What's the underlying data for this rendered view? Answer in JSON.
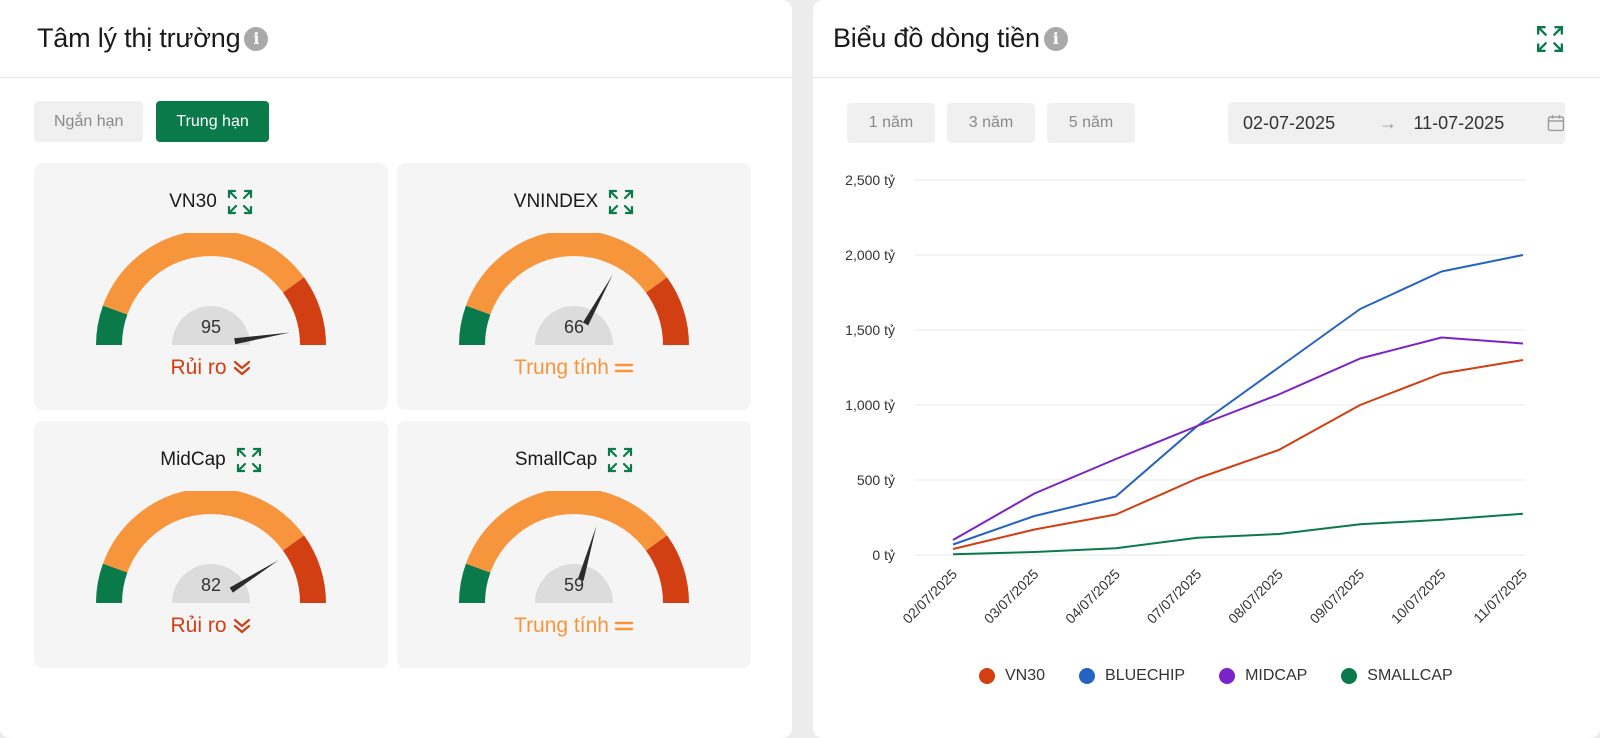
{
  "sentiment": {
    "title": "Tâm lý thị trường",
    "tabs": [
      {
        "label": "Ngắn hạn",
        "active": false
      },
      {
        "label": "Trung hạn",
        "active": true
      }
    ],
    "cards": [
      {
        "name": "VN30",
        "value": 95,
        "status": "Rủi ro",
        "status_type": "risk"
      },
      {
        "name": "VNINDEX",
        "value": 66,
        "status": "Trung tính",
        "status_type": "neutral"
      },
      {
        "name": "MidCap",
        "value": 82,
        "status": "Rủi ro",
        "status_type": "risk"
      },
      {
        "name": "SmallCap",
        "value": 59,
        "status": "Trung tính",
        "status_type": "neutral"
      }
    ]
  },
  "cashflow": {
    "title": "Biểu đồ dòng tiền",
    "ranges": [
      "1 năm",
      "3 năm",
      "5 năm"
    ],
    "date_from": "02-07-2025",
    "date_arrow": "→",
    "date_to": "11-07-2025"
  },
  "colors": {
    "green": "#0b7a4b",
    "orange": "#f7953c",
    "red": "#d13f12"
  },
  "chart_data": {
    "type": "line",
    "x": [
      "02/07/2025",
      "03/07/2025",
      "04/07/2025",
      "07/07/2025",
      "08/07/2025",
      "09/07/2025",
      "10/07/2025",
      "11/07/2025"
    ],
    "y_ticks": [
      "0 tỷ",
      "500 tỷ",
      "1,000 tỷ",
      "1,500 tỷ",
      "2,000 tỷ",
      "2,500 tỷ"
    ],
    "ylim": [
      0,
      2500
    ],
    "grid": true,
    "legend_position": "bottom",
    "series": [
      {
        "name": "VN30",
        "color": "#d13f12",
        "values": [
          40,
          170,
          270,
          510,
          700,
          1000,
          1210,
          1300
        ]
      },
      {
        "name": "BLUECHIP",
        "color": "#2563c2",
        "values": [
          70,
          260,
          390,
          860,
          1250,
          1640,
          1890,
          2000
        ]
      },
      {
        "name": "MIDCAP",
        "color": "#7b22c9",
        "values": [
          100,
          410,
          640,
          860,
          1070,
          1310,
          1450,
          1410
        ]
      },
      {
        "name": "SMALLCAP",
        "color": "#0b7a4b",
        "values": [
          5,
          20,
          45,
          115,
          140,
          205,
          235,
          275
        ]
      }
    ]
  }
}
